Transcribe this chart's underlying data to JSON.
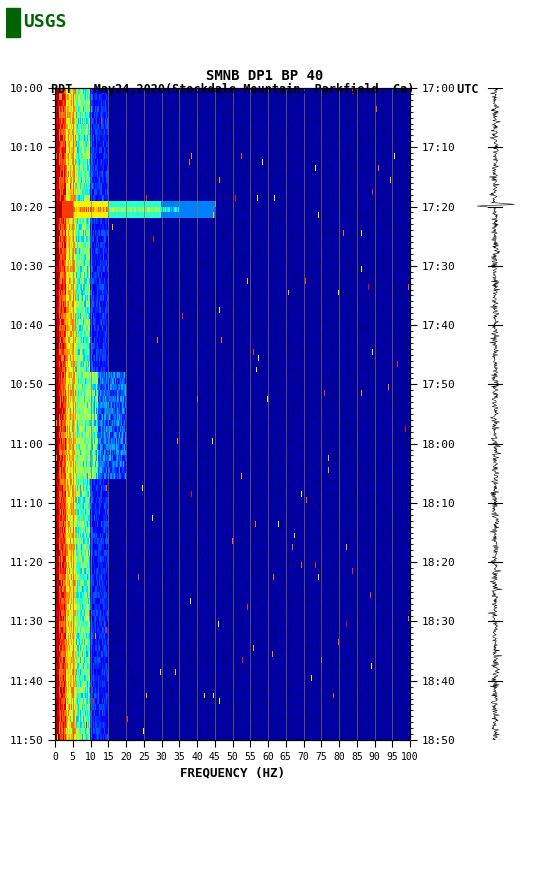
{
  "title_line1": "SMNB DP1 BP 40",
  "title_line2": "PDT   May24,2020(Stockdale Mountain, Parkfield, Ca)      UTC",
  "xlabel": "FREQUENCY (HZ)",
  "freq_min": 0,
  "freq_max": 100,
  "freq_ticks": [
    0,
    5,
    10,
    15,
    20,
    25,
    30,
    35,
    40,
    45,
    50,
    55,
    60,
    65,
    70,
    75,
    80,
    85,
    90,
    95,
    100
  ],
  "left_time_labels": [
    "10:00",
    "10:10",
    "10:20",
    "10:30",
    "10:40",
    "10:50",
    "11:00",
    "11:10",
    "11:20",
    "11:30",
    "11:40",
    "11:50"
  ],
  "right_time_labels": [
    "17:00",
    "17:10",
    "17:20",
    "17:30",
    "17:40",
    "17:50",
    "18:00",
    "18:10",
    "18:20",
    "18:30",
    "18:40",
    "18:50"
  ],
  "bg_color": "#ffffff",
  "vertical_line_color": "#8B7355",
  "vertical_line_positions": [
    5,
    10,
    15,
    20,
    25,
    30,
    35,
    40,
    45,
    50,
    55,
    60,
    65,
    70,
    75,
    80,
    85,
    90,
    95,
    100
  ],
  "usgs_green": "#006400",
  "noise_seed": 42,
  "n_time": 110,
  "n_freq": 400
}
